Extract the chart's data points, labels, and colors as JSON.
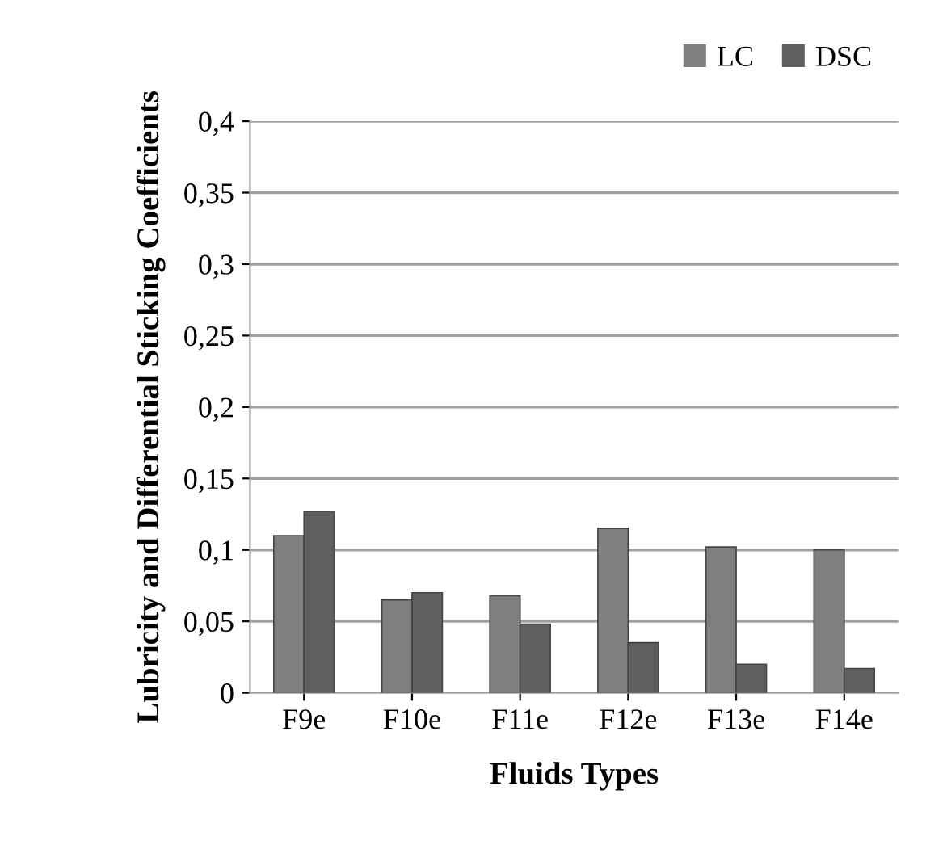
{
  "chart_data": {
    "type": "bar",
    "xlabel": "Fluids Types",
    "ylabel": "Lubricity and Differential Sticking Coefficients",
    "categories": [
      "F9e",
      "F10e",
      "F11e",
      "F12e",
      "F13e",
      "F14e"
    ],
    "series": [
      {
        "name": "LC",
        "color": "#7f7f7f",
        "values": [
          0.11,
          0.065,
          0.068,
          0.115,
          0.102,
          0.1
        ]
      },
      {
        "name": "DSC",
        "color": "#5f5f5f",
        "values": [
          0.127,
          0.07,
          0.048,
          0.035,
          0.02,
          0.017
        ]
      }
    ],
    "ylim": [
      0,
      0.4
    ],
    "yticks": [
      {
        "value": 0,
        "label": "0"
      },
      {
        "value": 0.05,
        "label": "0,05"
      },
      {
        "value": 0.1,
        "label": "0,1"
      },
      {
        "value": 0.15,
        "label": "0,15"
      },
      {
        "value": 0.2,
        "label": "0,2"
      },
      {
        "value": 0.25,
        "label": "0,25"
      },
      {
        "value": 0.3,
        "label": "0,3"
      },
      {
        "value": 0.35,
        "label": "0,35"
      },
      {
        "value": 0.4,
        "label": "0,4"
      }
    ],
    "grid": "y",
    "legend": "top right"
  }
}
